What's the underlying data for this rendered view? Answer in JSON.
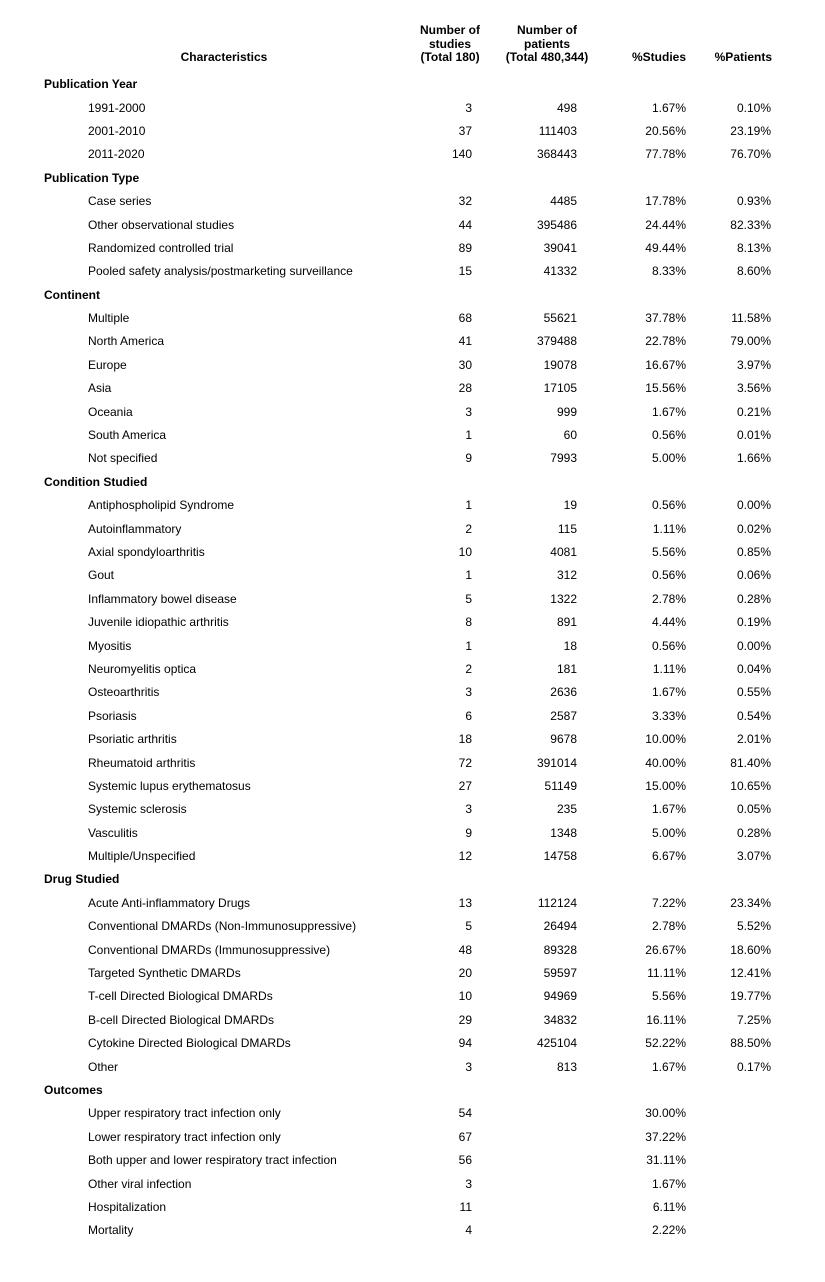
{
  "table": {
    "headers": {
      "characteristics": "Characteristics",
      "num_studies": "Number of\nstudies\n(Total 180)",
      "num_patients": "Number of\npatients\n(Total 480,344)",
      "pct_studies": "%Studies",
      "pct_patients": "%Patients"
    },
    "sections": [
      {
        "title": "Publication Year",
        "rows": [
          {
            "label": "1991-2000",
            "studies": "3",
            "patients": "498",
            "pct_studies": "1.67%",
            "pct_patients": "0.10%"
          },
          {
            "label": "2001-2010",
            "studies": "37",
            "patients": "111403",
            "pct_studies": "20.56%",
            "pct_patients": "23.19%"
          },
          {
            "label": "2011-2020",
            "studies": "140",
            "patients": "368443",
            "pct_studies": "77.78%",
            "pct_patients": "76.70%"
          }
        ]
      },
      {
        "title": "Publication Type",
        "rows": [
          {
            "label": "Case series",
            "studies": "32",
            "patients": "4485",
            "pct_studies": "17.78%",
            "pct_patients": "0.93%"
          },
          {
            "label": "Other observational studies",
            "studies": "44",
            "patients": "395486",
            "pct_studies": "24.44%",
            "pct_patients": "82.33%"
          },
          {
            "label": "Randomized controlled trial",
            "studies": "89",
            "patients": "39041",
            "pct_studies": "49.44%",
            "pct_patients": "8.13%"
          },
          {
            "label": "Pooled safety analysis/postmarketing surveillance",
            "studies": "15",
            "patients": "41332",
            "pct_studies": "8.33%",
            "pct_patients": "8.60%"
          }
        ]
      },
      {
        "title": "Continent",
        "rows": [
          {
            "label": "Multiple",
            "studies": "68",
            "patients": "55621",
            "pct_studies": "37.78%",
            "pct_patients": "11.58%"
          },
          {
            "label": "North America",
            "studies": "41",
            "patients": "379488",
            "pct_studies": "22.78%",
            "pct_patients": "79.00%"
          },
          {
            "label": "Europe",
            "studies": "30",
            "patients": "19078",
            "pct_studies": "16.67%",
            "pct_patients": "3.97%"
          },
          {
            "label": "Asia",
            "studies": "28",
            "patients": "17105",
            "pct_studies": "15.56%",
            "pct_patients": "3.56%"
          },
          {
            "label": "Oceania",
            "studies": "3",
            "patients": "999",
            "pct_studies": "1.67%",
            "pct_patients": "0.21%"
          },
          {
            "label": "South America",
            "studies": "1",
            "patients": "60",
            "pct_studies": "0.56%",
            "pct_patients": "0.01%"
          },
          {
            "label": "Not specified",
            "studies": "9",
            "patients": "7993",
            "pct_studies": "5.00%",
            "pct_patients": "1.66%"
          }
        ]
      },
      {
        "title": "Condition Studied",
        "rows": [
          {
            "label": "Antiphospholipid Syndrome",
            "studies": "1",
            "patients": "19",
            "pct_studies": "0.56%",
            "pct_patients": "0.00%"
          },
          {
            "label": "Autoinflammatory",
            "studies": "2",
            "patients": "115",
            "pct_studies": "1.11%",
            "pct_patients": "0.02%"
          },
          {
            "label": "Axial spondyloarthritis",
            "studies": "10",
            "patients": "4081",
            "pct_studies": "5.56%",
            "pct_patients": "0.85%"
          },
          {
            "label": "Gout",
            "studies": "1",
            "patients": "312",
            "pct_studies": "0.56%",
            "pct_patients": "0.06%"
          },
          {
            "label": "Inflammatory bowel disease",
            "studies": "5",
            "patients": "1322",
            "pct_studies": "2.78%",
            "pct_patients": "0.28%"
          },
          {
            "label": "Juvenile idiopathic arthritis",
            "studies": "8",
            "patients": "891",
            "pct_studies": "4.44%",
            "pct_patients": "0.19%"
          },
          {
            "label": "Myositis",
            "studies": "1",
            "patients": "18",
            "pct_studies": "0.56%",
            "pct_patients": "0.00%"
          },
          {
            "label": "Neuromyelitis optica",
            "studies": "2",
            "patients": "181",
            "pct_studies": "1.11%",
            "pct_patients": "0.04%"
          },
          {
            "label": "Osteoarthritis",
            "studies": "3",
            "patients": "2636",
            "pct_studies": "1.67%",
            "pct_patients": "0.55%"
          },
          {
            "label": "Psoriasis",
            "studies": "6",
            "patients": "2587",
            "pct_studies": "3.33%",
            "pct_patients": "0.54%"
          },
          {
            "label": "Psoriatic arthritis",
            "studies": "18",
            "patients": "9678",
            "pct_studies": "10.00%",
            "pct_patients": "2.01%"
          },
          {
            "label": "Rheumatoid arthritis",
            "studies": "72",
            "patients": "391014",
            "pct_studies": "40.00%",
            "pct_patients": "81.40%"
          },
          {
            "label": "Systemic lupus erythematosus",
            "studies": "27",
            "patients": "51149",
            "pct_studies": "15.00%",
            "pct_patients": "10.65%"
          },
          {
            "label": "Systemic sclerosis",
            "studies": "3",
            "patients": "235",
            "pct_studies": "1.67%",
            "pct_patients": "0.05%"
          },
          {
            "label": "Vasculitis",
            "studies": "9",
            "patients": "1348",
            "pct_studies": "5.00%",
            "pct_patients": "0.28%"
          },
          {
            "label": "Multiple/Unspecified",
            "studies": "12",
            "patients": "14758",
            "pct_studies": "6.67%",
            "pct_patients": "3.07%"
          }
        ]
      },
      {
        "title": "Drug Studied",
        "rows": [
          {
            "label": "Acute Anti-inflammatory Drugs",
            "studies": "13",
            "patients": "112124",
            "pct_studies": "7.22%",
            "pct_patients": "23.34%"
          },
          {
            "label": "Conventional DMARDs (Non-Immunosuppressive)",
            "studies": "5",
            "patients": "26494",
            "pct_studies": "2.78%",
            "pct_patients": "5.52%"
          },
          {
            "label": "Conventional DMARDs (Immunosuppressive)",
            "studies": "48",
            "patients": "89328",
            "pct_studies": "26.67%",
            "pct_patients": "18.60%"
          },
          {
            "label": "Targeted Synthetic DMARDs",
            "studies": "20",
            "patients": "59597",
            "pct_studies": "11.11%",
            "pct_patients": "12.41%"
          },
          {
            "label": "T-cell Directed Biological DMARDs",
            "studies": "10",
            "patients": "94969",
            "pct_studies": "5.56%",
            "pct_patients": "19.77%"
          },
          {
            "label": "B-cell Directed Biological DMARDs",
            "studies": "29",
            "patients": "34832",
            "pct_studies": "16.11%",
            "pct_patients": "7.25%"
          },
          {
            "label": "Cytokine Directed Biological DMARDs",
            "studies": "94",
            "patients": "425104",
            "pct_studies": "52.22%",
            "pct_patients": "88.50%"
          },
          {
            "label": "Other",
            "studies": "3",
            "patients": "813",
            "pct_studies": "1.67%",
            "pct_patients": "0.17%"
          }
        ]
      },
      {
        "title": "Outcomes",
        "rows": [
          {
            "label": "Upper respiratory tract infection only",
            "studies": "54",
            "patients": "",
            "pct_studies": "30.00%",
            "pct_patients": ""
          },
          {
            "label": "Lower respiratory tract infection only",
            "studies": "67",
            "patients": "",
            "pct_studies": "37.22%",
            "pct_patients": ""
          },
          {
            "label": "Both upper and lower respiratory tract infection",
            "studies": "56",
            "patients": "",
            "pct_studies": "31.11%",
            "pct_patients": ""
          },
          {
            "label": "Other viral infection",
            "studies": "3",
            "patients": "",
            "pct_studies": "1.67%",
            "pct_patients": ""
          },
          {
            "label": "Hospitalization",
            "studies": "11",
            "patients": "",
            "pct_studies": "6.11%",
            "pct_patients": ""
          },
          {
            "label": "Mortality",
            "studies": "4",
            "patients": "",
            "pct_studies": "2.22%",
            "pct_patients": ""
          }
        ]
      }
    ]
  }
}
